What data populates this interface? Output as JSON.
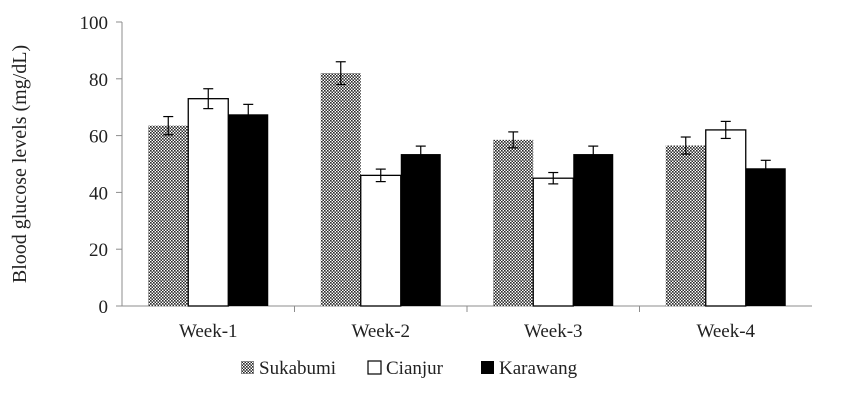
{
  "chart_data": {
    "type": "bar",
    "title": "",
    "xlabel": "",
    "ylabel": "Blood glucose levels (mg/dL)",
    "ylim": [
      0,
      100
    ],
    "yticks": [
      0,
      20,
      40,
      60,
      80,
      100
    ],
    "categories": [
      "Week-1",
      "Week-2",
      "Week-3",
      "Week-4"
    ],
    "error_bars": true,
    "grid": false,
    "legend_position": "bottom",
    "series": [
      {
        "name": "Sukabumi",
        "values": [
          63.5,
          82,
          58.5,
          56.5
        ],
        "errors": [
          3.2,
          4.0,
          2.8,
          3.0
        ],
        "fill": "pattern-dots"
      },
      {
        "name": "Cianjur",
        "values": [
          73,
          46,
          45,
          62
        ],
        "errors": [
          3.5,
          2.2,
          2.0,
          3.0
        ],
        "fill": "#ffffff"
      },
      {
        "name": "Karawang",
        "values": [
          67.5,
          53.5,
          53.5,
          48.5
        ],
        "errors": [
          3.5,
          2.8,
          2.8,
          2.8
        ],
        "fill": "#000000"
      }
    ]
  }
}
